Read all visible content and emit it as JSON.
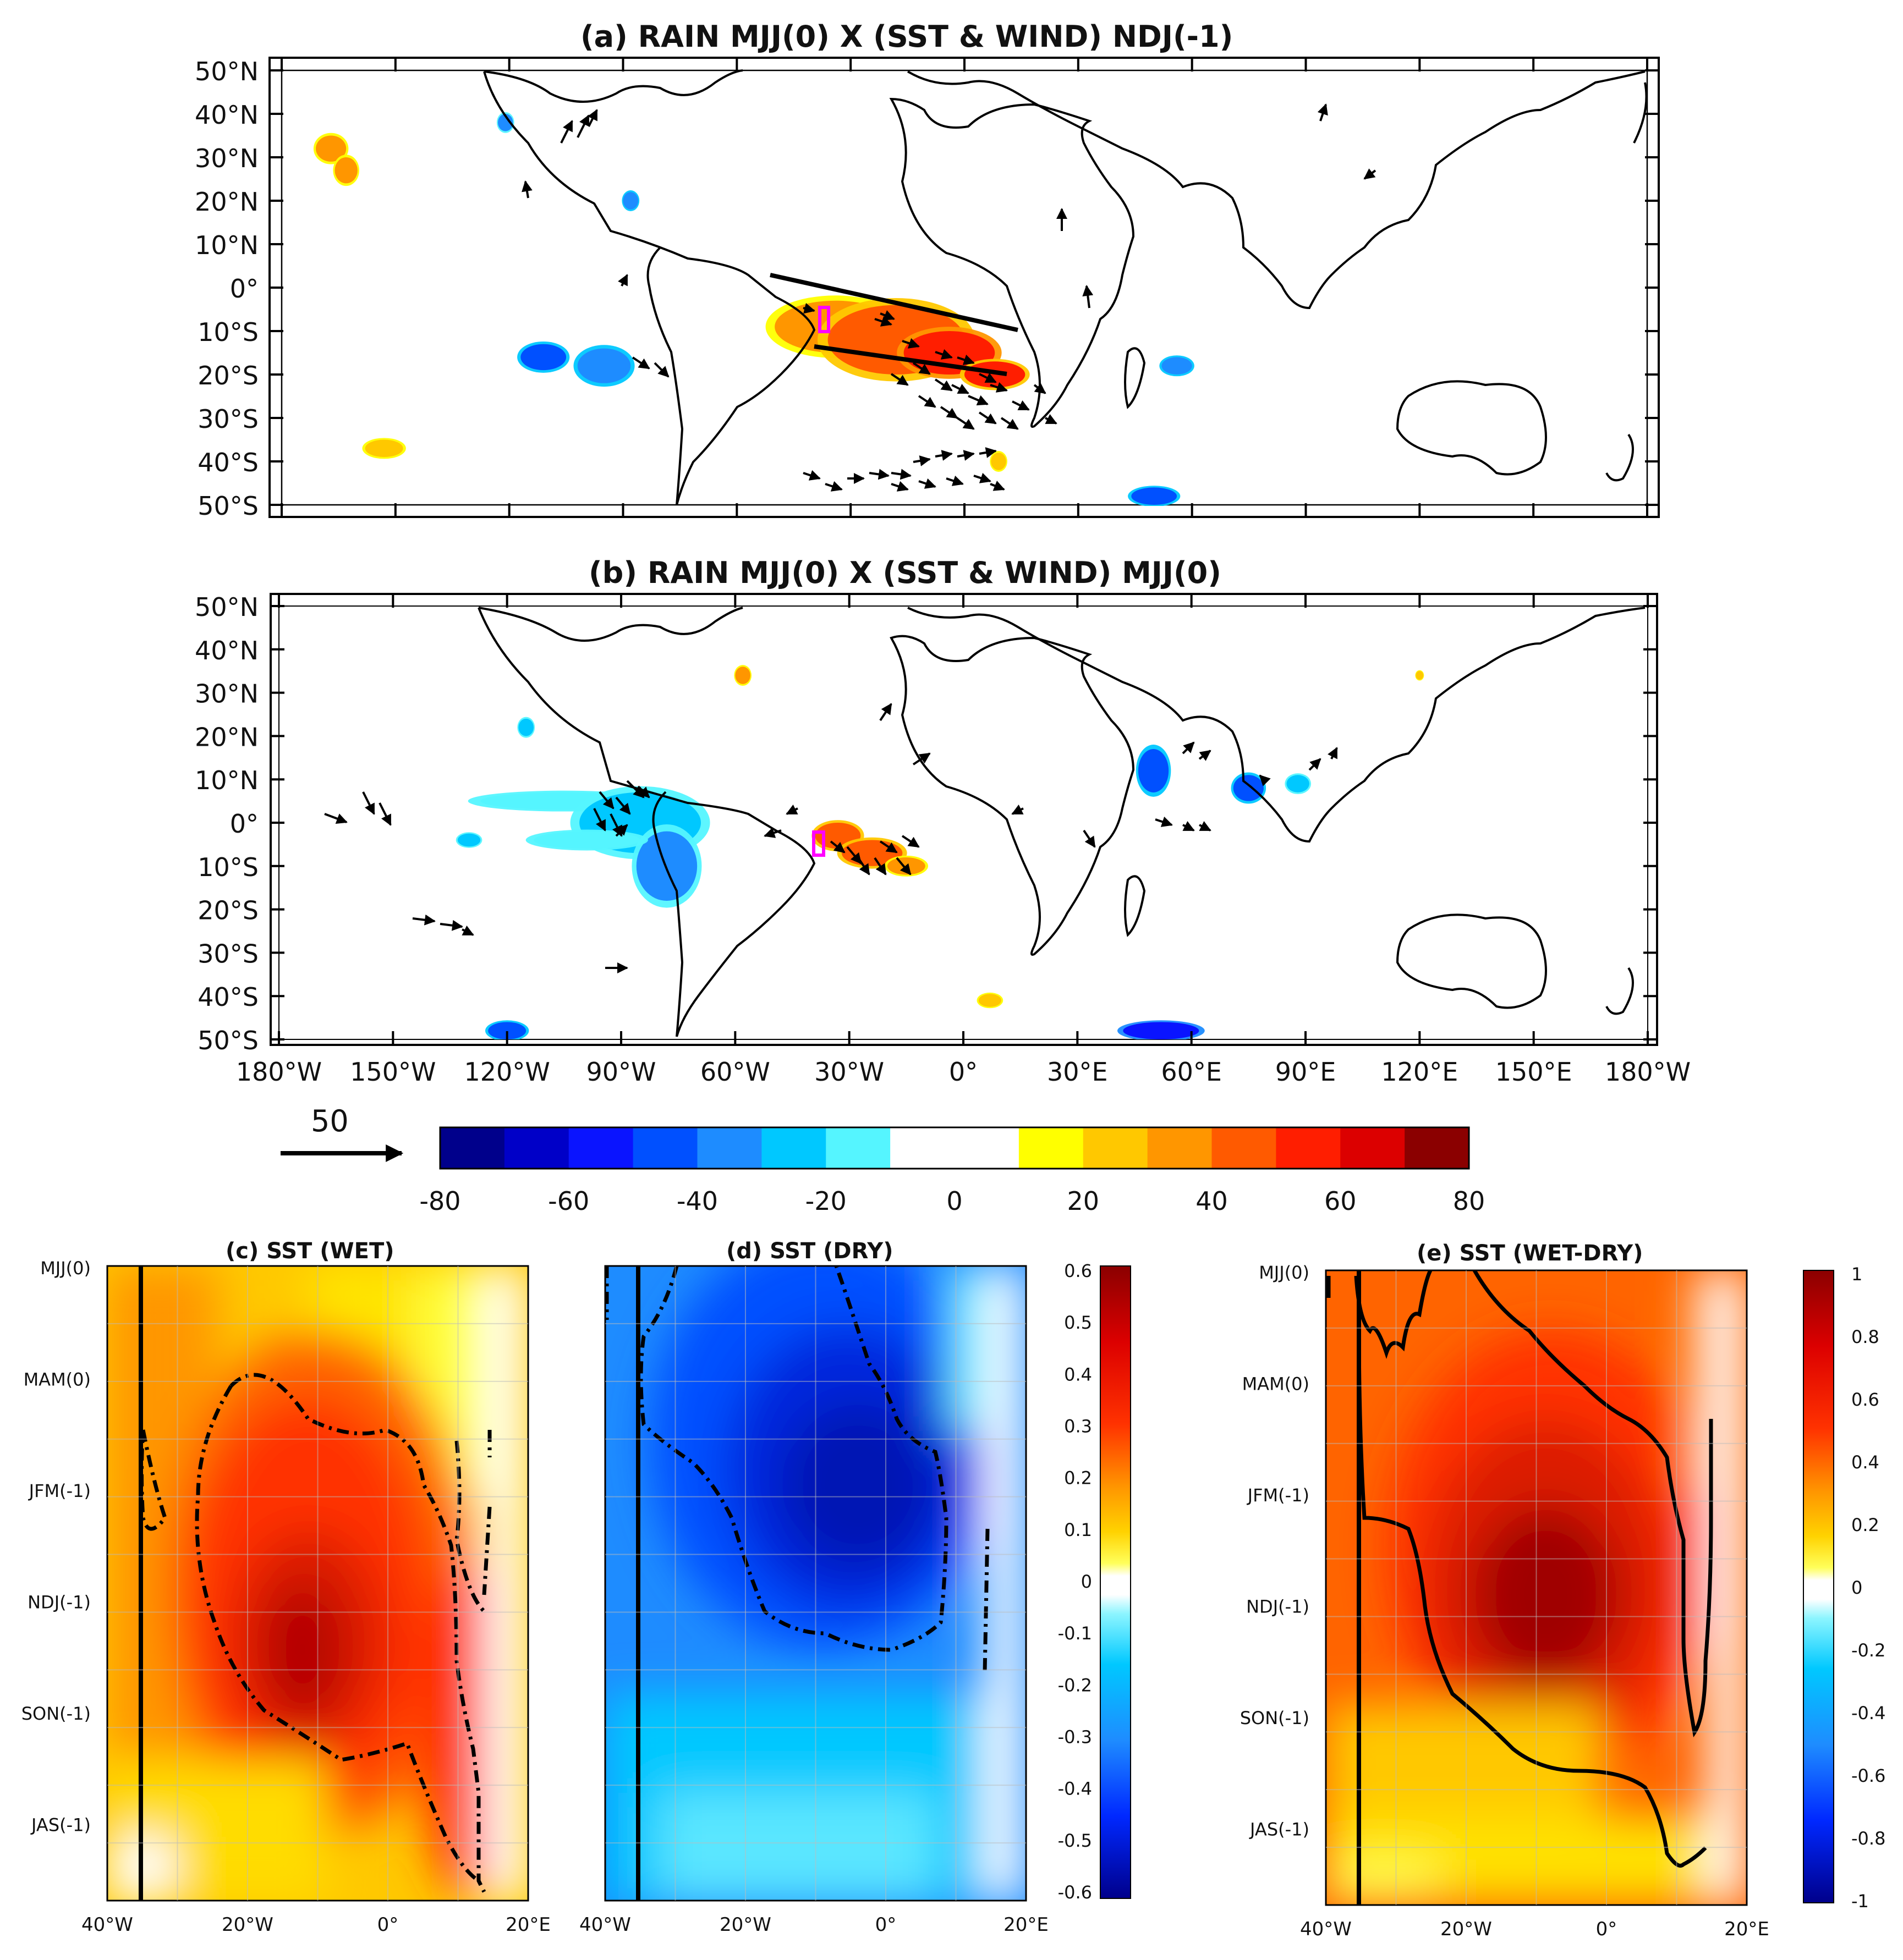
{
  "chart_data": [
    {
      "panel": "a",
      "type": "heatmap",
      "title": "(a)    RAIN MJJ(0) X (SST & WIND) NDJ(-1)",
      "lat_ticks": [
        "50°N",
        "40°N",
        "30°N",
        "20°N",
        "10°N",
        "0°",
        "10°S",
        "20°S",
        "30°S",
        "40°S",
        "50°S"
      ],
      "lat_values": [
        50,
        40,
        30,
        20,
        10,
        0,
        -10,
        -20,
        -30,
        -40,
        -50
      ],
      "lon_range": [
        -180,
        180
      ],
      "features": {
        "positive": [
          {
            "lon": -34,
            "lat": -9,
            "rx": 16,
            "ry": 6,
            "v": 35
          },
          {
            "lon": -18,
            "lat": -12,
            "rx": 18,
            "ry": 8,
            "v": 45
          },
          {
            "lon": -4,
            "lat": -15,
            "rx": 12,
            "ry": 5,
            "v": 55
          },
          {
            "lon": 8,
            "lat": -20,
            "rx": 8,
            "ry": 3,
            "v": 50
          },
          {
            "lon": -167,
            "lat": 32,
            "rx": 4,
            "ry": 3,
            "v": 30
          },
          {
            "lon": -163,
            "lat": 27,
            "rx": 3,
            "ry": 3,
            "v": 35
          },
          {
            "lon": -153,
            "lat": -37,
            "rx": 5,
            "ry": 2,
            "v": 25
          },
          {
            "lon": 9,
            "lat": -40,
            "rx": 2,
            "ry": 2,
            "v": 20
          }
        ],
        "negative": [
          {
            "lon": -95,
            "lat": -18,
            "rx": 7,
            "ry": 4,
            "v": -40
          },
          {
            "lon": -111,
            "lat": -16,
            "rx": 6,
            "ry": 3,
            "v": -45
          },
          {
            "lon": -121,
            "lat": 38,
            "rx": 2,
            "ry": 2,
            "v": -35
          },
          {
            "lon": -88,
            "lat": 20,
            "rx": 2,
            "ry": 2,
            "v": -40
          },
          {
            "lon": 56,
            "lat": -18,
            "rx": 4,
            "ry": 2,
            "v": -40
          },
          {
            "lon": 50,
            "lat": -48,
            "rx": 6,
            "ry": 2,
            "v": -45
          }
        ]
      },
      "wind_field": "present",
      "box": {
        "lon": [
          -35,
          -33
        ],
        "lat": [
          -11,
          -6
        ]
      }
    },
    {
      "panel": "b",
      "type": "heatmap",
      "title": "(b)    RAIN MJJ(0) X (SST & WIND) MJJ(0)",
      "lat_ticks": [
        "50°N",
        "40°N",
        "30°N",
        "20°N",
        "10°N",
        "0°",
        "10°S",
        "20°S",
        "30°S",
        "40°S",
        "50°S"
      ],
      "lat_values": [
        50,
        40,
        30,
        20,
        10,
        0,
        -10,
        -20,
        -30,
        -40,
        -50
      ],
      "lon_ticks": [
        "180°W",
        "150°W",
        "120°W",
        "90°W",
        "60°W",
        "30°W",
        "0°",
        "30°E",
        "60°E",
        "90°E",
        "120°E",
        "150°E",
        "180°W"
      ],
      "lon_values": [
        -180,
        -150,
        -120,
        -90,
        -60,
        -30,
        0,
        30,
        60,
        90,
        120,
        150,
        180
      ],
      "features": {
        "positive": [
          {
            "lon": -33,
            "lat": -3,
            "rx": 6,
            "ry": 3,
            "v": 40
          },
          {
            "lon": -24,
            "lat": -7,
            "rx": 8,
            "ry": 3,
            "v": 45
          },
          {
            "lon": -15,
            "lat": -10,
            "rx": 5,
            "ry": 2,
            "v": 30
          },
          {
            "lon": -58,
            "lat": 34,
            "rx": 2,
            "ry": 2,
            "v": 30
          },
          {
            "lon": 7,
            "lat": -41,
            "rx": 3,
            "ry": 1.5,
            "v": 25
          },
          {
            "lon": 120,
            "lat": 34,
            "rx": 1,
            "ry": 1,
            "v": 20
          }
        ],
        "negative": [
          {
            "lon": -105,
            "lat": 5,
            "rx": 22,
            "ry": 2,
            "v": -20
          },
          {
            "lon": -85,
            "lat": 0,
            "rx": 16,
            "ry": 7,
            "v": -30
          },
          {
            "lon": -78,
            "lat": -10,
            "rx": 8,
            "ry": 8,
            "v": -35
          },
          {
            "lon": -99,
            "lat": -4,
            "rx": 14,
            "ry": 2,
            "v": -20
          },
          {
            "lon": -130,
            "lat": -4,
            "rx": 3,
            "ry": 1.5,
            "v": -30
          },
          {
            "lon": -115,
            "lat": 22,
            "rx": 2,
            "ry": 2,
            "v": -25
          },
          {
            "lon": 50,
            "lat": 12,
            "rx": 4,
            "ry": 5,
            "v": -45
          },
          {
            "lon": 75,
            "lat": 8,
            "rx": 4,
            "ry": 3,
            "v": -45
          },
          {
            "lon": 88,
            "lat": 9,
            "rx": 3,
            "ry": 2,
            "v": -30
          },
          {
            "lon": -120,
            "lat": -48,
            "rx": 5,
            "ry": 2,
            "v": -50
          },
          {
            "lon": 52,
            "lat": -48,
            "rx": 10,
            "ry": 2,
            "v": -55
          }
        ]
      },
      "wind_field": "present",
      "box": {
        "lon": [
          -35,
          -33
        ],
        "lat": [
          -11,
          -6
        ]
      }
    },
    {
      "panel": "c",
      "type": "heatmap",
      "title": "(c) SST (WET)",
      "x_ticks": [
        "40°W",
        "20°W",
        "0°",
        "20°E"
      ],
      "x_values": [
        -40,
        -20,
        0,
        20
      ],
      "xlim": [
        -40,
        20
      ],
      "y_ticks": [
        "MJJ(0)",
        "MAM(0)",
        "JFM(-1)",
        "NDJ(-1)",
        "SON(-1)",
        "JAS(-1)"
      ],
      "colormap_range": [
        -0.6,
        0.6
      ],
      "peak": {
        "x": -10,
        "y": "NDJ(-1)",
        "v": 0.55
      },
      "data_extent": [
        -40,
        15
      ],
      "significance_contour": "dash-dot"
    },
    {
      "panel": "d",
      "type": "heatmap",
      "title": "(d) SST (DRY)",
      "x_ticks": [
        "40°W",
        "20°W",
        "0°",
        "20°E"
      ],
      "x_values": [
        -40,
        -20,
        0,
        20
      ],
      "xlim": [
        -40,
        20
      ],
      "colormap_range": [
        -0.6,
        0.6
      ],
      "peak": {
        "x": -5,
        "y": "JFM(-1)",
        "v": -0.55
      },
      "data_extent": [
        -40,
        15
      ],
      "significance_contour": "dash-dot",
      "colorbar_ticks": [
        "0.6",
        "0.5",
        "0.4",
        "0.3",
        "0.2",
        "0.1",
        "0",
        "-0.1",
        "-0.2",
        "-0.3",
        "-0.4",
        "-0.5",
        "-0.6"
      ]
    },
    {
      "panel": "e",
      "type": "heatmap",
      "title": "(e) SST (WET-DRY)",
      "x_ticks": [
        "40°W",
        "20°W",
        "0°",
        "20°E"
      ],
      "x_values": [
        -40,
        -20,
        0,
        20
      ],
      "xlim": [
        -40,
        20
      ],
      "y_ticks": [
        "MJJ(0)",
        "MAM(0)",
        "JFM(-1)",
        "NDJ(-1)",
        "SON(-1)",
        "JAS(-1)"
      ],
      "colormap_range": [
        -1,
        1
      ],
      "peak": {
        "x": -8,
        "y": "NDJ(-1)",
        "v": 0.95
      },
      "data_extent": [
        -40,
        15
      ],
      "significance_contour": "solid",
      "colorbar_ticks": [
        "1",
        "0.8",
        "0.6",
        "0.4",
        "0.2",
        "0",
        "-0.2",
        "-0.4",
        "-0.6",
        "-0.8",
        "-1"
      ]
    }
  ],
  "vector_key": "50",
  "rain_colorbar": {
    "ticks": [
      "-80",
      "-60",
      "-40",
      "-20",
      "0",
      "20",
      "40",
      "60",
      "80"
    ],
    "colors": [
      "#00008b",
      "#0000c8",
      "#0a14ff",
      "#0050ff",
      "#1e8cff",
      "#00c8ff",
      "#55f5ff",
      "#ffffff",
      "#ffffff",
      "#ffff00",
      "#ffc800",
      "#ff9600",
      "#ff5a00",
      "#ff1e00",
      "#dc0000",
      "#8b0000"
    ]
  },
  "colors": {
    "box": "#ff00ff",
    "contour": "#000000"
  }
}
